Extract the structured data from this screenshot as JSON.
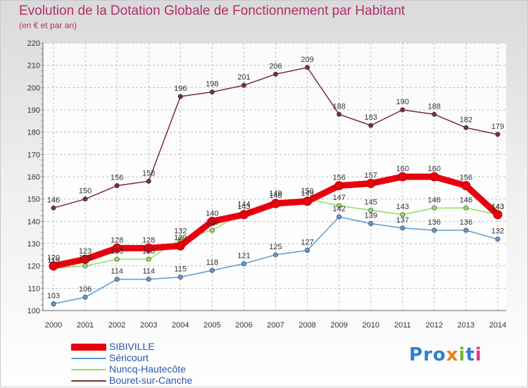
{
  "title": "Evolution de la Dotation Globale de Fonctionnement par Habitant",
  "subtitle": "(en € et par an)",
  "logo": {
    "text": "Proxiti",
    "letter_colors": [
      "#2f7fd0",
      "#2f7fd0",
      "#2f7fd0",
      "#e8821e",
      "#78b52e",
      "#2f7fd0",
      "#e0388a"
    ]
  },
  "chart_data": {
    "type": "line",
    "x": [
      2000,
      2001,
      2002,
      2003,
      2004,
      2005,
      2006,
      2007,
      2008,
      2009,
      2010,
      2011,
      2012,
      2013,
      2014
    ],
    "ylim": [
      100,
      220
    ],
    "yticks": [
      100,
      110,
      120,
      130,
      140,
      150,
      160,
      170,
      180,
      190,
      200,
      210,
      220
    ],
    "grid": true,
    "legend_position": "bottom-left",
    "series": [
      {
        "name": "SIBIVILLE",
        "color": "#e8000e",
        "values": [
          120,
          123,
          128,
          128,
          129,
          140,
          143,
          148,
          149,
          156,
          157,
          160,
          160,
          156,
          143
        ]
      },
      {
        "name": "Séricourt",
        "color": "#5a9bd5",
        "values": [
          103,
          106,
          114,
          114,
          115,
          118,
          121,
          125,
          127,
          142,
          139,
          137,
          136,
          136,
          132
        ]
      },
      {
        "name": "Nuncq-Hautecôte",
        "color": "#8ee05a",
        "values": [
          119,
          120,
          123,
          123,
          132,
          136,
          144,
          149,
          150,
          147,
          145,
          143,
          146,
          146,
          143
        ]
      },
      {
        "name": "Bouret-sur-Canche",
        "color": "#7a2f35",
        "values": [
          146,
          150,
          156,
          158,
          196,
          198,
          201,
          206,
          209,
          188,
          183,
          190,
          188,
          182,
          179
        ]
      }
    ]
  }
}
